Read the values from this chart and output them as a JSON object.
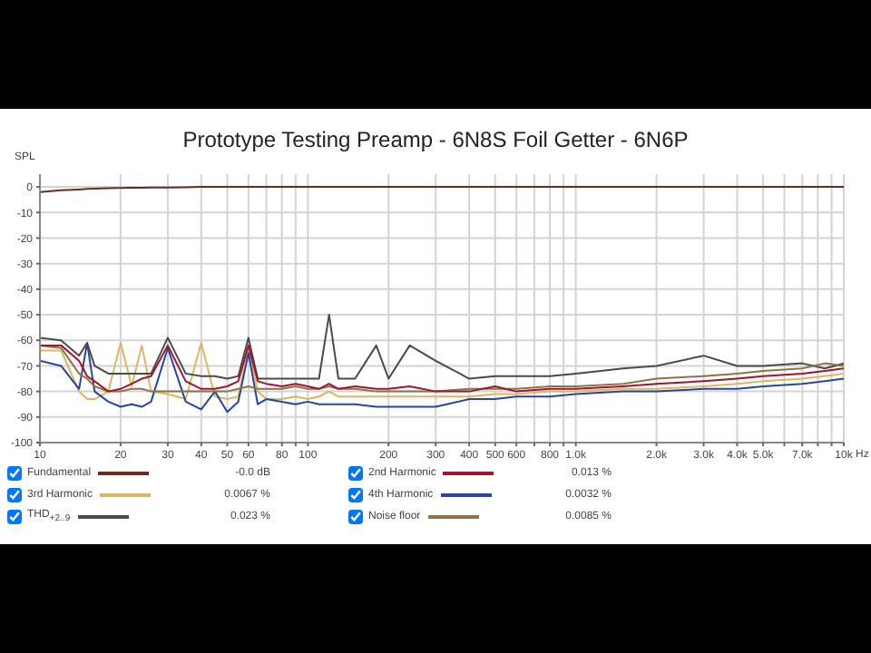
{
  "chart_data": {
    "type": "line",
    "title": "Prototype Testing Preamp - 6N8S Foil Getter - 6N6P",
    "ylabel": "SPL",
    "x": [
      10,
      12,
      14,
      15,
      16,
      18,
      20,
      22,
      24,
      26,
      30,
      35,
      40,
      45,
      50,
      55,
      60,
      65,
      70,
      80,
      90,
      100,
      110,
      120,
      130,
      150,
      180,
      200,
      240,
      300,
      400,
      500,
      600,
      800,
      1000,
      1500,
      2000,
      3000,
      4000,
      5000,
      7000,
      8500,
      10000
    ],
    "series": [
      {
        "name": "Fundamental",
        "color": "#6b2a1e",
        "values": [
          -2,
          -1.3,
          -1,
          -0.8,
          -0.7,
          -0.5,
          -0.4,
          -0.3,
          -0.3,
          -0.2,
          -0.2,
          -0.1,
          0,
          0,
          0,
          0,
          0,
          0,
          0,
          0,
          0,
          0,
          0,
          0,
          0,
          0,
          0,
          0,
          0,
          0,
          0,
          0,
          0,
          0,
          0,
          0,
          0,
          0,
          0,
          0,
          0,
          0,
          0
        ]
      },
      {
        "name": "2nd Harmonic",
        "color": "#a3122e",
        "values": [
          -62,
          -62,
          -68,
          -74,
          -76,
          -80,
          -79,
          -77,
          -75,
          -74,
          -62,
          -76,
          -79,
          -79,
          -78,
          -76,
          -62,
          -76,
          -77,
          -78,
          -77,
          -78,
          -79,
          -77,
          -79,
          -78,
          -79,
          -79,
          -78,
          -80,
          -80,
          -78,
          -80,
          -79,
          -79,
          -78,
          -77,
          -76,
          -75,
          -74,
          -73,
          -72,
          -71
        ]
      },
      {
        "name": "3rd Harmonic",
        "color": "#d8b860",
        "values": [
          -64,
          -64,
          -80,
          -83,
          -83,
          -80,
          -61,
          -78,
          -62,
          -80,
          -81,
          -83,
          -61,
          -82,
          -83,
          -82,
          -63,
          -80,
          -83,
          -83,
          -82,
          -83,
          -82,
          -80,
          -82,
          -82,
          -82,
          -82,
          -82,
          -82,
          -82,
          -81,
          -81,
          -80,
          -80,
          -79,
          -79,
          -78,
          -77,
          -76,
          -75,
          -74,
          -73
        ]
      },
      {
        "name": "4th Harmonic",
        "color": "#2a44a0",
        "values": [
          -68,
          -70,
          -79,
          -61,
          -80,
          -84,
          -86,
          -85,
          -86,
          -84,
          -63,
          -84,
          -87,
          -80,
          -88,
          -84,
          -65,
          -85,
          -83,
          -84,
          -85,
          -84,
          -85,
          -85,
          -85,
          -85,
          -86,
          -86,
          -86,
          -86,
          -83,
          -83,
          -82,
          -82,
          -81,
          -80,
          -80,
          -79,
          -79,
          -78,
          -77,
          -76,
          -75
        ]
      },
      {
        "name": "THD$_{+2..9}$",
        "color": "#4a4a4a",
        "values": [
          -59,
          -60,
          -66,
          -61,
          -70,
          -73,
          -73,
          -73,
          -73,
          -73,
          -59,
          -73,
          -74,
          -74,
          -75,
          -74,
          -59,
          -75,
          -75,
          -75,
          -75,
          -75,
          -75,
          -50,
          -75,
          -75,
          -62,
          -75,
          -62,
          -68,
          -75,
          -74,
          -74,
          -74,
          -73,
          -71,
          -70,
          -66,
          -70,
          -70,
          -69,
          -71,
          -69
        ]
      },
      {
        "name": "Noise floor",
        "color": "#8a7448",
        "values": [
          -62,
          -63,
          -73,
          -75,
          -78,
          -80,
          -80,
          -79,
          -79,
          -80,
          -80,
          -80,
          -80,
          -80,
          -80,
          -79,
          -78,
          -79,
          -79,
          -79,
          -78,
          -79,
          -79,
          -78,
          -79,
          -79,
          -80,
          -80,
          -80,
          -80,
          -79,
          -79,
          -79,
          -78,
          -78,
          -77,
          -75,
          -74,
          -73,
          -72,
          -71,
          -69,
          -70
        ]
      }
    ],
    "annotations": [
      "-0.0 dB",
      "0.013 %",
      "0.0067 %",
      "0.0032 %",
      "0.023 %",
      "0.0085 %"
    ],
    "log": "x",
    "xlim": [
      10,
      10000
    ],
    "xticks": [
      10,
      20,
      30,
      40,
      50,
      60,
      {
        "value": 70,
        "label": null
      },
      80,
      {
        "value": 90,
        "label": null
      },
      100,
      200,
      300,
      400,
      500,
      600,
      {
        "value": 700,
        "label": null
      },
      800,
      {
        "value": 900,
        "label": null
      },
      {
        "value": 1000,
        "label": "1.0k"
      },
      {
        "value": 2000,
        "label": "2.0k"
      },
      {
        "value": 3000,
        "label": "3.0k"
      },
      {
        "value": 4000,
        "label": "4.0k"
      },
      {
        "value": 5000,
        "label": "5.0k"
      },
      {
        "value": 6000,
        "label": null
      },
      {
        "value": 7000,
        "label": "7.0k"
      },
      {
        "value": 8000,
        "label": null
      },
      {
        "value": 9000,
        "label": null
      },
      {
        "value": 10000,
        "label": "10k"
      }
    ],
    "xlabel": "Hz",
    "ylim": [
      -100,
      5
    ],
    "yticks": [
      -100,
      -90,
      -80,
      -70,
      -60,
      -50,
      -40,
      -30,
      -20,
      -10,
      0
    ],
    "grid": true,
    "legend": "bottom",
    "line_style": "solid",
    "marker": "none"
  }
}
